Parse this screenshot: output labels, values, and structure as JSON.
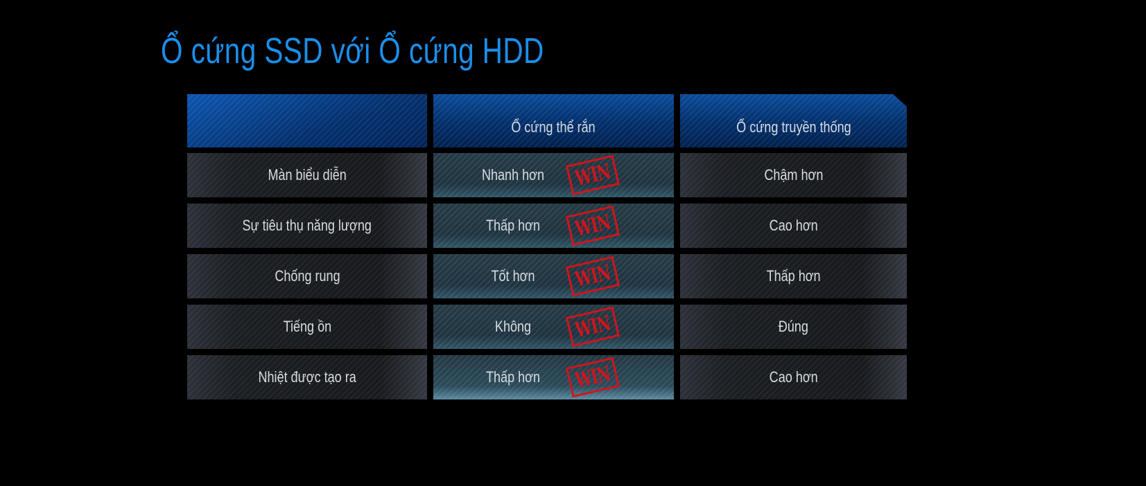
{
  "title": "Ổ cứng SSD với Ổ cứng HDD",
  "table": {
    "headers": [
      "",
      "Ổ cứng thể rắn",
      "Ổ cứng truyền thống"
    ],
    "rows": [
      {
        "feature": "Màn biểu diễn",
        "ssd": "Nhanh hơn",
        "hdd": "Chậm hơn",
        "badge": "WIN"
      },
      {
        "feature": "Sự tiêu thụ năng lượng",
        "ssd": "Thấp hơn",
        "hdd": "Cao hơn",
        "badge": "WIN"
      },
      {
        "feature": "Chống rung",
        "ssd": "Tốt hơn",
        "hdd": "Thấp hơn",
        "badge": "WIN"
      },
      {
        "feature": "Tiếng ồn",
        "ssd": "Không",
        "hdd": "Đúng",
        "badge": "WIN"
      },
      {
        "feature": "Nhiệt được tạo ra",
        "ssd": "Thấp hơn",
        "hdd": "Cao hơn",
        "badge": "WIN"
      }
    ]
  },
  "colors": {
    "title": "#1a8fea",
    "stamp": "#d0141c",
    "header": "#03306e"
  }
}
